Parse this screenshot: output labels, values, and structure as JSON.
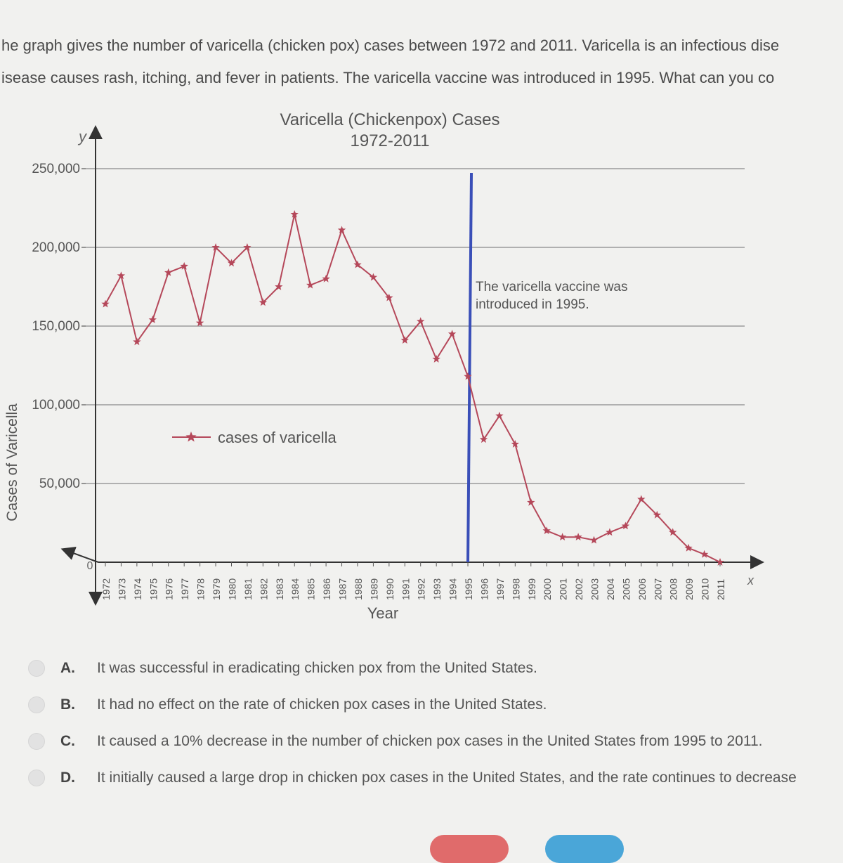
{
  "question": {
    "line1": "he graph gives the number of varicella (chicken pox) cases between 1972 and 2011. Varicella is an infectious dise",
    "line2": "isease causes rash, itching, and fever in patients. The varicella vaccine was introduced in 1995. What can you co"
  },
  "chart_data": {
    "type": "line",
    "title": "Varicella (Chickenpox) Cases",
    "subtitle": "1972-2011",
    "xlabel": "Year",
    "ylabel": "Cases of Varicella",
    "x_axis_letter": "x",
    "y_axis_letter": "y",
    "origin_label": "0",
    "ylim": [
      0,
      250000
    ],
    "yticks": [
      {
        "value": 50000,
        "label": "50,000"
      },
      {
        "value": 100000,
        "label": "100,000"
      },
      {
        "value": 150000,
        "label": "150,000"
      },
      {
        "value": 200000,
        "label": "200,000"
      },
      {
        "value": 250000,
        "label": "250,000"
      }
    ],
    "x": [
      "1972",
      "1973",
      "1974",
      "1975",
      "1976",
      "1977",
      "1978",
      "1979",
      "1980",
      "1981",
      "1982",
      "1983",
      "1984",
      "1985",
      "1986",
      "1987",
      "1988",
      "1989",
      "1990",
      "1991",
      "1992",
      "1993",
      "1994",
      "1995",
      "1996",
      "1997",
      "1998",
      "1999",
      "2000",
      "2001",
      "2002",
      "2003",
      "2004",
      "2005",
      "2006",
      "2007",
      "2008",
      "2009",
      "2010",
      "2011"
    ],
    "series": [
      {
        "name": "cases of varicella",
        "color": "#b5485a",
        "marker": "star",
        "values": [
          164000,
          182000,
          140000,
          154000,
          184000,
          188000,
          152000,
          200000,
          190000,
          200000,
          165000,
          175000,
          221000,
          176000,
          180000,
          211000,
          189000,
          181000,
          168000,
          141000,
          153000,
          129000,
          145000,
          118000,
          78000,
          93000,
          75000,
          38000,
          20000,
          16000,
          16000,
          14000,
          19000,
          23000,
          40000,
          30000,
          19000,
          9000,
          5000,
          0
        ]
      }
    ],
    "legend": {
      "position": "middle-left",
      "label": "cases of varicella"
    },
    "annotation": {
      "x": "1995",
      "line1": "The varicella vaccine was",
      "line2": "introduced in 1995.",
      "color": "#3a4fb8"
    },
    "grid": true
  },
  "options": [
    {
      "letter": "A.",
      "text": "It was successful in eradicating chicken pox from the United States."
    },
    {
      "letter": "B.",
      "text": "It had no effect on the rate of chicken pox cases in the United States."
    },
    {
      "letter": "C.",
      "text": "It caused a 10% decrease in the number of chicken pox cases in the United States from 1995 to 2011."
    },
    {
      "letter": "D.",
      "text": "It initially caused a large drop in chicken pox cases in the United States, and the rate continues to decrease"
    }
  ]
}
